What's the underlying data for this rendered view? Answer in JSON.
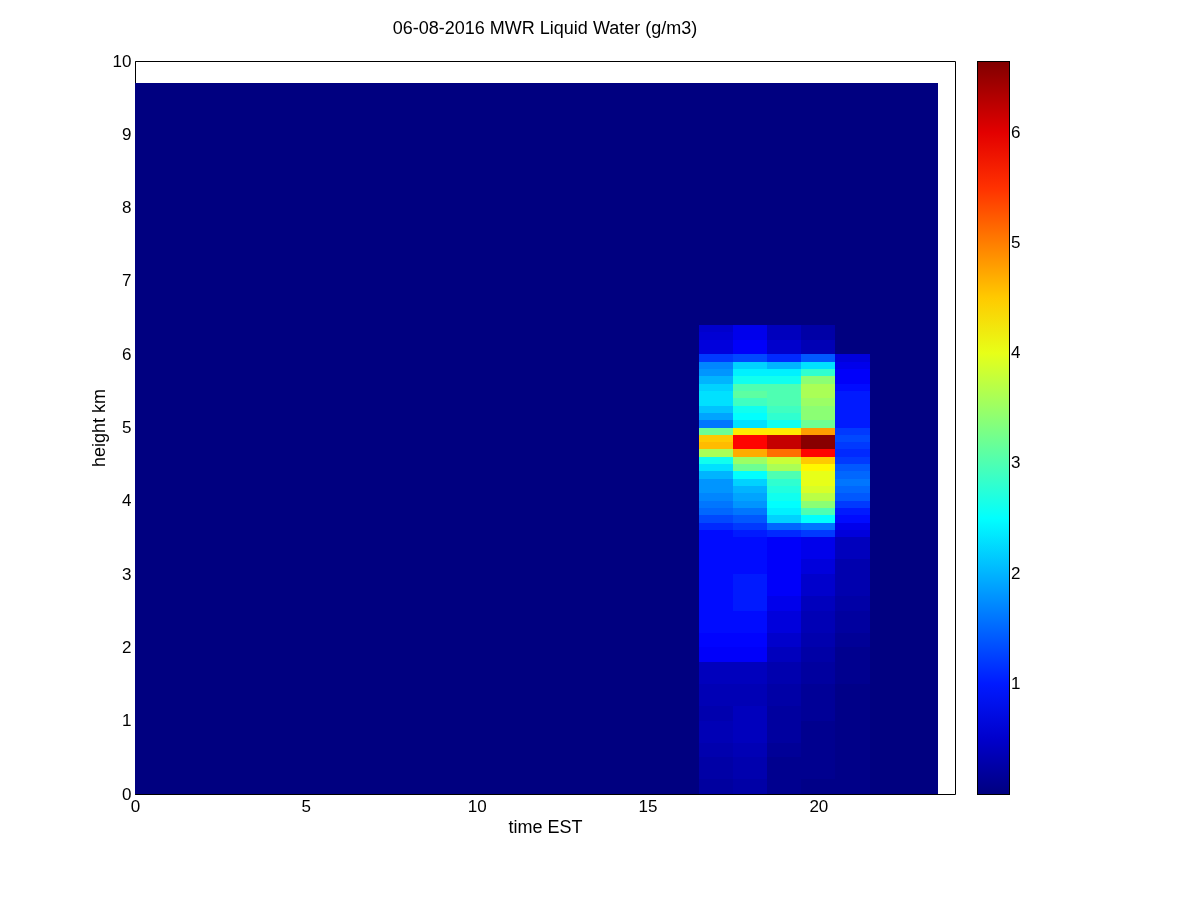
{
  "chart_data": {
    "type": "heatmap",
    "title": "06-08-2016 MWR Liquid Water (g/m3)",
    "xlabel": "time EST",
    "ylabel": "height km",
    "x": [
      0,
      1,
      2,
      3,
      4,
      5,
      6,
      7,
      8,
      9,
      10,
      11,
      12,
      13,
      14,
      15,
      16,
      17,
      18,
      19,
      20,
      21,
      22,
      23
    ],
    "y": [
      9.65,
      9.55,
      9.45,
      9.35,
      9.25,
      9.15,
      9.05,
      8.95,
      8.85,
      8.75,
      8.65,
      8.55,
      8.45,
      8.35,
      8.25,
      8.15,
      8.05,
      7.95,
      7.85,
      7.75,
      7.65,
      7.55,
      7.45,
      7.35,
      7.25,
      7.15,
      7.05,
      6.95,
      6.85,
      6.75,
      6.65,
      6.55,
      6.45,
      6.35,
      6.25,
      6.15,
      6.05,
      5.95,
      5.85,
      5.75,
      5.65,
      5.55,
      5.45,
      5.35,
      5.25,
      5.15,
      5.05,
      4.95,
      4.85,
      4.75,
      4.65,
      4.55,
      4.45,
      4.35,
      4.25,
      4.15,
      4.05,
      3.95,
      3.85,
      3.75,
      3.65,
      3.55,
      3.45,
      3.35,
      3.25,
      3.15,
      3.05,
      2.95,
      2.85,
      2.75,
      2.65,
      2.55,
      2.45,
      2.35,
      2.25,
      2.15,
      2.05,
      1.95,
      1.85,
      1.75,
      1.65,
      1.55,
      1.45,
      1.35,
      1.25,
      1.15,
      1.05,
      0.95,
      0.85,
      0.75,
      0.65,
      0.55,
      0.45,
      0.35,
      0.25,
      0.15,
      0.05
    ],
    "cells": [
      [
        0,
        0,
        0,
        0,
        0,
        0,
        0,
        0,
        0,
        0,
        0,
        0,
        0,
        0,
        0,
        0,
        0,
        0,
        0,
        0,
        0,
        0,
        0,
        0
      ],
      [
        0,
        0,
        0,
        0,
        0,
        0,
        0,
        0,
        0,
        0,
        0,
        0,
        0,
        0,
        0,
        0,
        0,
        0,
        0,
        0,
        0,
        0,
        0,
        0
      ],
      [
        0,
        0,
        0,
        0,
        0,
        0,
        0,
        0,
        0,
        0,
        0,
        0,
        0,
        0,
        0,
        0,
        0,
        0,
        0,
        0,
        0,
        0,
        0,
        0
      ],
      [
        0,
        0,
        0,
        0,
        0,
        0,
        0,
        0,
        0,
        0,
        0,
        0,
        0,
        0,
        0,
        0,
        0,
        0,
        0,
        0,
        0,
        0,
        0,
        0
      ],
      [
        0,
        0,
        0,
        0,
        0,
        0,
        0,
        0,
        0,
        0,
        0,
        0,
        0,
        0,
        0,
        0,
        0,
        0,
        0,
        0,
        0,
        0,
        0,
        0
      ],
      [
        0,
        0,
        0,
        0,
        0,
        0,
        0,
        0,
        0,
        0,
        0,
        0,
        0,
        0,
        0,
        0,
        0,
        0,
        0,
        0,
        0,
        0,
        0,
        0
      ],
      [
        0,
        0,
        0,
        0,
        0,
        0,
        0,
        0,
        0,
        0,
        0,
        0,
        0,
        0,
        0,
        0,
        0,
        0,
        0,
        0,
        0,
        0,
        0,
        0
      ],
      [
        0,
        0,
        0,
        0,
        0,
        0,
        0,
        0,
        0,
        0,
        0,
        0,
        0,
        0,
        0,
        0,
        0,
        0,
        0,
        0,
        0,
        0,
        0,
        0
      ],
      [
        0,
        0,
        0,
        0,
        0,
        0,
        0,
        0,
        0,
        0,
        0,
        0,
        0,
        0,
        0,
        0,
        0,
        0,
        0,
        0,
        0,
        0,
        0,
        0
      ],
      [
        0,
        0,
        0,
        0,
        0,
        0,
        0,
        0,
        0,
        0,
        0,
        0,
        0,
        0,
        0,
        0,
        0,
        0,
        0,
        0,
        0,
        0,
        0,
        0
      ],
      [
        0,
        0,
        0,
        0,
        0,
        0,
        0,
        0,
        0,
        0,
        0,
        0,
        0,
        0,
        0,
        0,
        0,
        0,
        0,
        0,
        0,
        0,
        0,
        0
      ],
      [
        0,
        0,
        0,
        0,
        0,
        0,
        0,
        0,
        0,
        0,
        0,
        0,
        0,
        0,
        0,
        0,
        0,
        0,
        0,
        0,
        0,
        0,
        0,
        0
      ],
      [
        0,
        0,
        0,
        0,
        0,
        0,
        0,
        0,
        0,
        0,
        0,
        0,
        0,
        0,
        0,
        0,
        0,
        0,
        0,
        0,
        0,
        0,
        0,
        0
      ],
      [
        0,
        0,
        0,
        0,
        0,
        0,
        0,
        0,
        0,
        0,
        0,
        0,
        0,
        0,
        0,
        0,
        0,
        0,
        0,
        0,
        0,
        0,
        0,
        0
      ],
      [
        0,
        0,
        0,
        0,
        0,
        0,
        0,
        0,
        0,
        0,
        0,
        0,
        0,
        0,
        0,
        0,
        0,
        0,
        0,
        0,
        0,
        0,
        0,
        0
      ],
      [
        0,
        0,
        0,
        0,
        0,
        0,
        0,
        0,
        0,
        0,
        0,
        0,
        0,
        0,
        0,
        0,
        0,
        0,
        0,
        0,
        0,
        0,
        0,
        0
      ],
      [
        0,
        0,
        0,
        0,
        0,
        0,
        0,
        0,
        0,
        0,
        0,
        0,
        0,
        0,
        0,
        0,
        0,
        0,
        0,
        0,
        0,
        0,
        0,
        0
      ],
      [
        0,
        0,
        0,
        0,
        0,
        0,
        0,
        0,
        0,
        0,
        0,
        0,
        0,
        0,
        0,
        0,
        0,
        0,
        0,
        0,
        0,
        0,
        0,
        0
      ],
      [
        0,
        0,
        0,
        0,
        0,
        0,
        0,
        0,
        0,
        0,
        0,
        0,
        0,
        0,
        0,
        0,
        0,
        0,
        0,
        0,
        0,
        0,
        0,
        0
      ],
      [
        0,
        0,
        0,
        0,
        0,
        0,
        0,
        0,
        0,
        0,
        0,
        0,
        0,
        0,
        0,
        0,
        0,
        0,
        0,
        0,
        0,
        0,
        0,
        0
      ],
      [
        0,
        0,
        0,
        0,
        0,
        0,
        0,
        0,
        0,
        0,
        0,
        0,
        0,
        0,
        0,
        0,
        0,
        0,
        0,
        0,
        0,
        0,
        0,
        0
      ],
      [
        0,
        0,
        0,
        0,
        0,
        0,
        0,
        0,
        0,
        0,
        0,
        0,
        0,
        0,
        0,
        0,
        0,
        0,
        0,
        0,
        0,
        0,
        0,
        0
      ],
      [
        0,
        0,
        0,
        0,
        0,
        0,
        0,
        0,
        0,
        0,
        0,
        0,
        0,
        0,
        0,
        0,
        0,
        0,
        0,
        0,
        0,
        0,
        0,
        0
      ],
      [
        0,
        0,
        0,
        0,
        0,
        0,
        0,
        0,
        0,
        0,
        0,
        0,
        0,
        0,
        0,
        0,
        0,
        0,
        0,
        0,
        0,
        0,
        0,
        0
      ],
      [
        0,
        0,
        0,
        0,
        0,
        0,
        0,
        0,
        0,
        0,
        0,
        0,
        0,
        0,
        0,
        0,
        0,
        0,
        0,
        0,
        0,
        0,
        0,
        0
      ],
      [
        0,
        0,
        0,
        0,
        0,
        0,
        0,
        0,
        0,
        0,
        0,
        0,
        0,
        0,
        0,
        0,
        0,
        0,
        0,
        0,
        0,
        0,
        0,
        0
      ],
      [
        0,
        0,
        0,
        0,
        0,
        0,
        0,
        0,
        0,
        0,
        0,
        0,
        0,
        0,
        0,
        0,
        0,
        0,
        0,
        0,
        0,
        0,
        0,
        0
      ],
      [
        0,
        0,
        0,
        0,
        0,
        0,
        0,
        0,
        0,
        0,
        0,
        0,
        0,
        0,
        0,
        0,
        0,
        0,
        0,
        0,
        0,
        0,
        0,
        0
      ],
      [
        0,
        0,
        0,
        0,
        0,
        0,
        0,
        0,
        0,
        0,
        0,
        0,
        0,
        0,
        0,
        0,
        0,
        0,
        0,
        0,
        0,
        0,
        0,
        0
      ],
      [
        0,
        0,
        0,
        0,
        0,
        0,
        0,
        0,
        0,
        0,
        0,
        0,
        0,
        0,
        0,
        0,
        0,
        0,
        0,
        0,
        0,
        0,
        0,
        0
      ],
      [
        0,
        0,
        0,
        0,
        0,
        0,
        0,
        0,
        0,
        0,
        0,
        0,
        0,
        0,
        0,
        0,
        0,
        0,
        0,
        0,
        0,
        0,
        0,
        0
      ],
      [
        0,
        0,
        0,
        0,
        0,
        0,
        0,
        0,
        0,
        0,
        0,
        0,
        0,
        0,
        0,
        0,
        0,
        0,
        0,
        0,
        0,
        0,
        0,
        0
      ],
      [
        0,
        0,
        0,
        0,
        0,
        0,
        0,
        0,
        0,
        0,
        0,
        0,
        0,
        0,
        0,
        0,
        0,
        0,
        0,
        0,
        0,
        0,
        0,
        0
      ],
      [
        0,
        0,
        0,
        0,
        0,
        0,
        0,
        0,
        0,
        0,
        0,
        0,
        0,
        0,
        0,
        0,
        0,
        0.5,
        0.7,
        0.4,
        0.25,
        0,
        0,
        0
      ],
      [
        0,
        0,
        0,
        0,
        0,
        0,
        0,
        0,
        0,
        0,
        0,
        0,
        0,
        0,
        0,
        0,
        0,
        0.55,
        0.7,
        0.4,
        0.25,
        0,
        0,
        0
      ],
      [
        0,
        0,
        0,
        0,
        0,
        0,
        0,
        0,
        0,
        0,
        0,
        0,
        0,
        0,
        0,
        0,
        0,
        0.6,
        0.8,
        0.5,
        0.35,
        0,
        0,
        0
      ],
      [
        0,
        0,
        0,
        0,
        0,
        0,
        0,
        0,
        0,
        0,
        0,
        0,
        0,
        0,
        0,
        0,
        0,
        0.6,
        0.8,
        0.5,
        0.35,
        0,
        0,
        0
      ],
      [
        0,
        0,
        0,
        0,
        0,
        0,
        0,
        0,
        0,
        0,
        0,
        0,
        0,
        0,
        0,
        0,
        0,
        1.2,
        1.3,
        1.1,
        1.4,
        0.6,
        0,
        0
      ],
      [
        0,
        0,
        0,
        0,
        0,
        0,
        0,
        0,
        0,
        0,
        0,
        0,
        0,
        0,
        0,
        0,
        0,
        1.7,
        2.2,
        2.0,
        2.3,
        0.7,
        0,
        0
      ],
      [
        0,
        0,
        0,
        0,
        0,
        0,
        0,
        0,
        0,
        0,
        0,
        0,
        0,
        0,
        0,
        0,
        0,
        1.8,
        2.4,
        2.4,
        2.8,
        0.8,
        0,
        0
      ],
      [
        0,
        0,
        0,
        0,
        0,
        0,
        0,
        0,
        0,
        0,
        0,
        0,
        0,
        0,
        0,
        0,
        0,
        2.0,
        2.6,
        2.6,
        3.4,
        0.8,
        0,
        0
      ],
      [
        0,
        0,
        0,
        0,
        0,
        0,
        0,
        0,
        0,
        0,
        0,
        0,
        0,
        0,
        0,
        0,
        0,
        2.2,
        3.0,
        3.0,
        3.6,
        0.9,
        0,
        0
      ],
      [
        0,
        0,
        0,
        0,
        0,
        0,
        0,
        0,
        0,
        0,
        0,
        0,
        0,
        0,
        0,
        0,
        0,
        2.3,
        3.1,
        3.0,
        3.6,
        1.0,
        0,
        0
      ],
      [
        0,
        0,
        0,
        0,
        0,
        0,
        0,
        0,
        0,
        0,
        0,
        0,
        0,
        0,
        0,
        0,
        0,
        2.3,
        2.9,
        3.0,
        3.5,
        1.0,
        0,
        0
      ],
      [
        0,
        0,
        0,
        0,
        0,
        0,
        0,
        0,
        0,
        0,
        0,
        0,
        0,
        0,
        0,
        0,
        0,
        2.1,
        2.6,
        2.9,
        3.4,
        1.0,
        0,
        0
      ],
      [
        0,
        0,
        0,
        0,
        0,
        0,
        0,
        0,
        0,
        0,
        0,
        0,
        0,
        0,
        0,
        0,
        0,
        1.9,
        2.5,
        2.8,
        3.4,
        1.0,
        0,
        0
      ],
      [
        0,
        0,
        0,
        0,
        0,
        0,
        0,
        0,
        0,
        0,
        0,
        0,
        0,
        0,
        0,
        0,
        0,
        1.6,
        2.3,
        2.6,
        3.2,
        1.0,
        0,
        0
      ],
      [
        0,
        0,
        0,
        0,
        0,
        0,
        0,
        0,
        0,
        0,
        0,
        0,
        0,
        0,
        0,
        0,
        0,
        3.2,
        4.3,
        4.3,
        4.8,
        1.2,
        0,
        0
      ],
      [
        0,
        0,
        0,
        0,
        0,
        0,
        0,
        0,
        0,
        0,
        0,
        0,
        0,
        0,
        0,
        0,
        0,
        4.5,
        5.8,
        6.2,
        6.6,
        1.3,
        0,
        0
      ],
      [
        0,
        0,
        0,
        0,
        0,
        0,
        0,
        0,
        0,
        0,
        0,
        0,
        0,
        0,
        0,
        0,
        0,
        4.6,
        5.8,
        6.2,
        6.6,
        1.2,
        0,
        0
      ],
      [
        0,
        0,
        0,
        0,
        0,
        0,
        0,
        0,
        0,
        0,
        0,
        0,
        0,
        0,
        0,
        0,
        0,
        3.6,
        4.7,
        5.1,
        5.8,
        1.1,
        0,
        0
      ],
      [
        0,
        0,
        0,
        0,
        0,
        0,
        0,
        0,
        0,
        0,
        0,
        0,
        0,
        0,
        0,
        0,
        0,
        2.6,
        3.5,
        3.8,
        4.5,
        1.2,
        0,
        0
      ],
      [
        0,
        0,
        0,
        0,
        0,
        0,
        0,
        0,
        0,
        0,
        0,
        0,
        0,
        0,
        0,
        0,
        0,
        2.3,
        3.2,
        3.6,
        4.2,
        1.4,
        0,
        0
      ],
      [
        0,
        0,
        0,
        0,
        0,
        0,
        0,
        0,
        0,
        0,
        0,
        0,
        0,
        0,
        0,
        0,
        0,
        2.0,
        2.5,
        3.0,
        4.0,
        1.5,
        0,
        0
      ],
      [
        0,
        0,
        0,
        0,
        0,
        0,
        0,
        0,
        0,
        0,
        0,
        0,
        0,
        0,
        0,
        0,
        0,
        1.8,
        2.2,
        2.8,
        4.0,
        1.6,
        0,
        0
      ],
      [
        0,
        0,
        0,
        0,
        0,
        0,
        0,
        0,
        0,
        0,
        0,
        0,
        0,
        0,
        0,
        0,
        0,
        1.8,
        2.0,
        2.7,
        3.9,
        1.5,
        0,
        0
      ],
      [
        0,
        0,
        0,
        0,
        0,
        0,
        0,
        0,
        0,
        0,
        0,
        0,
        0,
        0,
        0,
        0,
        0,
        1.7,
        1.9,
        2.6,
        3.7,
        1.4,
        0,
        0
      ],
      [
        0,
        0,
        0,
        0,
        0,
        0,
        0,
        0,
        0,
        0,
        0,
        0,
        0,
        0,
        0,
        0,
        0,
        1.6,
        1.8,
        2.5,
        3.4,
        1.2,
        0,
        0
      ],
      [
        0,
        0,
        0,
        0,
        0,
        0,
        0,
        0,
        0,
        0,
        0,
        0,
        0,
        0,
        0,
        0,
        0,
        1.5,
        1.6,
        2.4,
        3.0,
        1.0,
        0,
        0
      ],
      [
        0,
        0,
        0,
        0,
        0,
        0,
        0,
        0,
        0,
        0,
        0,
        0,
        0,
        0,
        0,
        0,
        0,
        1.3,
        1.4,
        2.2,
        2.5,
        0.9,
        0,
        0
      ],
      [
        0,
        0,
        0,
        0,
        0,
        0,
        0,
        0,
        0,
        0,
        0,
        0,
        0,
        0,
        0,
        0,
        0,
        1.1,
        1.2,
        1.5,
        1.6,
        0.7,
        0,
        0
      ],
      [
        0,
        0,
        0,
        0,
        0,
        0,
        0,
        0,
        0,
        0,
        0,
        0,
        0,
        0,
        0,
        0,
        0,
        0.9,
        1.0,
        1.1,
        1.2,
        0.6,
        0,
        0
      ],
      [
        0,
        0,
        0,
        0,
        0,
        0,
        0,
        0,
        0,
        0,
        0,
        0,
        0,
        0,
        0,
        0,
        0,
        0.9,
        0.9,
        0.8,
        0.7,
        0.4,
        0,
        0
      ],
      [
        0,
        0,
        0,
        0,
        0,
        0,
        0,
        0,
        0,
        0,
        0,
        0,
        0,
        0,
        0,
        0,
        0,
        0.9,
        0.9,
        0.8,
        0.7,
        0.4,
        0,
        0
      ],
      [
        0,
        0,
        0,
        0,
        0,
        0,
        0,
        0,
        0,
        0,
        0,
        0,
        0,
        0,
        0,
        0,
        0,
        0.9,
        0.9,
        0.8,
        0.7,
        0.4,
        0,
        0
      ],
      [
        0,
        0,
        0,
        0,
        0,
        0,
        0,
        0,
        0,
        0,
        0,
        0,
        0,
        0,
        0,
        0,
        0,
        0.9,
        0.9,
        0.8,
        0.6,
        0.3,
        0,
        0
      ],
      [
        0,
        0,
        0,
        0,
        0,
        0,
        0,
        0,
        0,
        0,
        0,
        0,
        0,
        0,
        0,
        0,
        0,
        0.9,
        0.9,
        0.8,
        0.6,
        0.3,
        0,
        0
      ],
      [
        0,
        0,
        0,
        0,
        0,
        0,
        0,
        0,
        0,
        0,
        0,
        0,
        0,
        0,
        0,
        0,
        0,
        0.9,
        1.0,
        0.8,
        0.5,
        0.3,
        0,
        0
      ],
      [
        0,
        0,
        0,
        0,
        0,
        0,
        0,
        0,
        0,
        0,
        0,
        0,
        0,
        0,
        0,
        0,
        0,
        0.9,
        1.0,
        0.8,
        0.5,
        0.3,
        0,
        0
      ],
      [
        0,
        0,
        0,
        0,
        0,
        0,
        0,
        0,
        0,
        0,
        0,
        0,
        0,
        0,
        0,
        0,
        0,
        0.9,
        1.0,
        0.8,
        0.5,
        0.3,
        0,
        0
      ],
      [
        0,
        0,
        0,
        0,
        0,
        0,
        0,
        0,
        0,
        0,
        0,
        0,
        0,
        0,
        0,
        0,
        0,
        0.9,
        1.0,
        0.7,
        0.4,
        0.25,
        0,
        0
      ],
      [
        0,
        0,
        0,
        0,
        0,
        0,
        0,
        0,
        0,
        0,
        0,
        0,
        0,
        0,
        0,
        0,
        0,
        0.9,
        1.0,
        0.7,
        0.4,
        0.25,
        0,
        0
      ],
      [
        0,
        0,
        0,
        0,
        0,
        0,
        0,
        0,
        0,
        0,
        0,
        0,
        0,
        0,
        0,
        0,
        0,
        0.9,
        0.9,
        0.6,
        0.35,
        0.2,
        0,
        0
      ],
      [
        0,
        0,
        0,
        0,
        0,
        0,
        0,
        0,
        0,
        0,
        0,
        0,
        0,
        0,
        0,
        0,
        0,
        0.9,
        0.9,
        0.6,
        0.35,
        0.2,
        0,
        0
      ],
      [
        0,
        0,
        0,
        0,
        0,
        0,
        0,
        0,
        0,
        0,
        0,
        0,
        0,
        0,
        0,
        0,
        0,
        0.9,
        0.9,
        0.6,
        0.35,
        0.2,
        0,
        0
      ],
      [
        0,
        0,
        0,
        0,
        0,
        0,
        0,
        0,
        0,
        0,
        0,
        0,
        0,
        0,
        0,
        0,
        0,
        0.85,
        0.85,
        0.5,
        0.3,
        0.15,
        0,
        0
      ],
      [
        0,
        0,
        0,
        0,
        0,
        0,
        0,
        0,
        0,
        0,
        0,
        0,
        0,
        0,
        0,
        0,
        0,
        0.85,
        0.85,
        0.5,
        0.3,
        0.15,
        0,
        0
      ],
      [
        0,
        0,
        0,
        0,
        0,
        0,
        0,
        0,
        0,
        0,
        0,
        0,
        0,
        0,
        0,
        0,
        0,
        0.8,
        0.8,
        0.4,
        0.25,
        0.1,
        0,
        0
      ],
      [
        0,
        0,
        0,
        0,
        0,
        0,
        0,
        0,
        0,
        0,
        0,
        0,
        0,
        0,
        0,
        0,
        0,
        0.8,
        0.8,
        0.4,
        0.25,
        0.1,
        0,
        0
      ],
      [
        0,
        0,
        0,
        0,
        0,
        0,
        0,
        0,
        0,
        0,
        0,
        0,
        0,
        0,
        0,
        0,
        0,
        0.4,
        0.4,
        0.3,
        0.2,
        0.1,
        0,
        0
      ],
      [
        0,
        0,
        0,
        0,
        0,
        0,
        0,
        0,
        0,
        0,
        0,
        0,
        0,
        0,
        0,
        0,
        0,
        0.4,
        0.4,
        0.3,
        0.2,
        0.1,
        0,
        0
      ],
      [
        0,
        0,
        0,
        0,
        0,
        0,
        0,
        0,
        0,
        0,
        0,
        0,
        0,
        0,
        0,
        0,
        0,
        0.4,
        0.4,
        0.3,
        0.2,
        0.1,
        0,
        0
      ],
      [
        0,
        0,
        0,
        0,
        0,
        0,
        0,
        0,
        0,
        0,
        0,
        0,
        0,
        0,
        0,
        0,
        0,
        0.35,
        0.35,
        0.25,
        0.15,
        0.05,
        0,
        0
      ],
      [
        0,
        0,
        0,
        0,
        0,
        0,
        0,
        0,
        0,
        0,
        0,
        0,
        0,
        0,
        0,
        0,
        0,
        0.35,
        0.35,
        0.25,
        0.15,
        0.05,
        0,
        0
      ],
      [
        0,
        0,
        0,
        0,
        0,
        0,
        0,
        0,
        0,
        0,
        0,
        0,
        0,
        0,
        0,
        0,
        0,
        0.35,
        0.35,
        0.25,
        0.15,
        0.05,
        0,
        0
      ],
      [
        0,
        0,
        0,
        0,
        0,
        0,
        0,
        0,
        0,
        0,
        0,
        0,
        0,
        0,
        0,
        0,
        0,
        0.3,
        0.4,
        0.2,
        0.15,
        0.05,
        0,
        0
      ],
      [
        0,
        0,
        0,
        0,
        0,
        0,
        0,
        0,
        0,
        0,
        0,
        0,
        0,
        0,
        0,
        0,
        0,
        0.3,
        0.4,
        0.2,
        0.15,
        0.05,
        0,
        0
      ],
      [
        0,
        0,
        0,
        0,
        0,
        0,
        0,
        0,
        0,
        0,
        0,
        0,
        0,
        0,
        0,
        0,
        0,
        0.35,
        0.4,
        0.2,
        0.1,
        0.05,
        0,
        0
      ],
      [
        0,
        0,
        0,
        0,
        0,
        0,
        0,
        0,
        0,
        0,
        0,
        0,
        0,
        0,
        0,
        0,
        0,
        0.35,
        0.4,
        0.2,
        0.1,
        0.05,
        0,
        0
      ],
      [
        0,
        0,
        0,
        0,
        0,
        0,
        0,
        0,
        0,
        0,
        0,
        0,
        0,
        0,
        0,
        0,
        0,
        0.35,
        0.4,
        0.2,
        0.1,
        0.05,
        0,
        0
      ],
      [
        0,
        0,
        0,
        0,
        0,
        0,
        0,
        0,
        0,
        0,
        0,
        0,
        0,
        0,
        0,
        0,
        0,
        0.3,
        0.35,
        0.15,
        0.1,
        0.05,
        0,
        0
      ],
      [
        0,
        0,
        0,
        0,
        0,
        0,
        0,
        0,
        0,
        0,
        0,
        0,
        0,
        0,
        0,
        0,
        0,
        0.3,
        0.35,
        0.15,
        0.1,
        0.05,
        0,
        0
      ],
      [
        0,
        0,
        0,
        0,
        0,
        0,
        0,
        0,
        0,
        0,
        0,
        0,
        0,
        0,
        0,
        0,
        0,
        0.25,
        0.3,
        0.1,
        0.1,
        0.05,
        0,
        0
      ],
      [
        0,
        0,
        0,
        0,
        0,
        0,
        0,
        0,
        0,
        0,
        0,
        0,
        0,
        0,
        0,
        0,
        0,
        0.25,
        0.3,
        0.1,
        0.1,
        0.05,
        0,
        0
      ],
      [
        0,
        0,
        0,
        0,
        0,
        0,
        0,
        0,
        0,
        0,
        0,
        0,
        0,
        0,
        0,
        0,
        0,
        0.25,
        0.3,
        0.1,
        0.1,
        0.05,
        0,
        0
      ],
      [
        0,
        0,
        0,
        0,
        0,
        0,
        0,
        0,
        0,
        0,
        0,
        0,
        0,
        0,
        0,
        0,
        0,
        0.2,
        0.25,
        0.1,
        0.05,
        0.05,
        0,
        0
      ],
      [
        0,
        0,
        0,
        0,
        0,
        0,
        0,
        0,
        0,
        0,
        0,
        0,
        0,
        0,
        0,
        0,
        0,
        0.2,
        0.25,
        0.1,
        0.05,
        0.05,
        0,
        0
      ]
    ],
    "xlim": [
      0,
      24
    ],
    "xticks": [
      0,
      5,
      10,
      15,
      20
    ],
    "ylim": [
      0,
      10
    ],
    "yticks": [
      0,
      1,
      2,
      3,
      4,
      5,
      6,
      7,
      8,
      9,
      10
    ],
    "clim": [
      0,
      6.65
    ],
    "cticks": [
      1,
      2,
      3,
      4,
      5,
      6
    ],
    "grid": false
  }
}
